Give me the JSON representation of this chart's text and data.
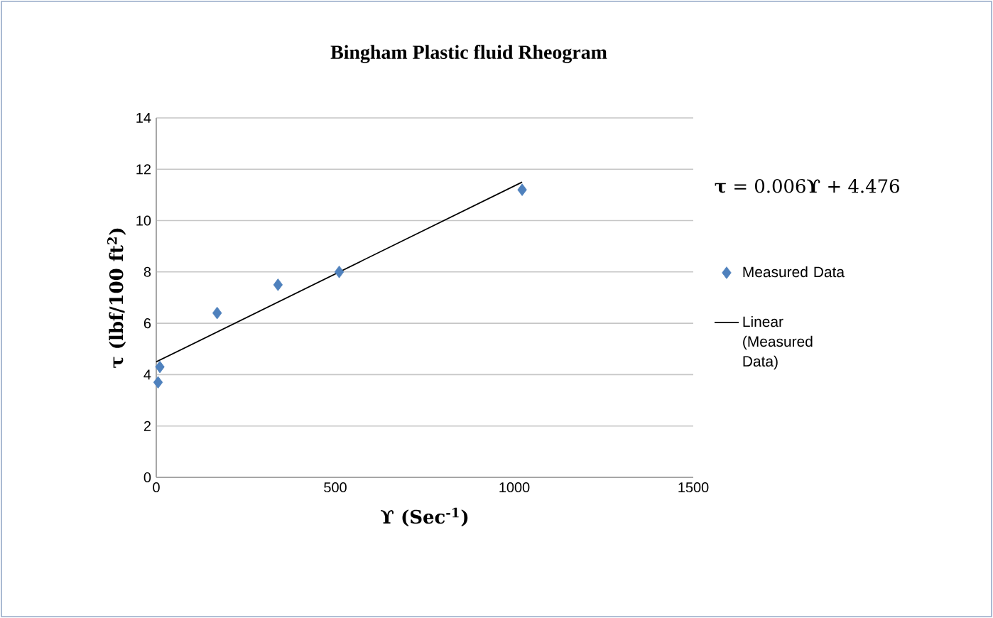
{
  "chart_data": {
    "type": "scatter",
    "title": "Bingham Plastic fluid Rheogram",
    "xlabel": "ϒ (Sec$^{-1}$)",
    "ylabel": "τ (lbf/100 ft$^{2}$)",
    "annotations": [
      "**τ** = 0.006**ϒ** + 4.476"
    ],
    "series": [
      {
        "name": "Measured Data",
        "marker": "diamond",
        "color": "#4f81bd",
        "x": [
          5,
          10,
          170,
          340,
          511,
          1022
        ],
        "values": [
          3.7,
          4.3,
          6.4,
          7.5,
          8.0,
          11.2
        ]
      },
      {
        "name": "Linear (Measured Data)",
        "type": "line",
        "marker": "none",
        "line_style": "solid",
        "color": "#000000",
        "x": [
          0,
          1022
        ],
        "values": [
          4.5,
          11.5
        ]
      }
    ],
    "xlim": [
      0,
      1500
    ],
    "ylim": [
      0,
      14
    ],
    "xticks": [
      0,
      500,
      1000,
      1500
    ],
    "yticks": [
      0,
      2,
      4,
      6,
      8,
      10,
      12,
      14
    ],
    "grid": "y",
    "legend": "right"
  }
}
